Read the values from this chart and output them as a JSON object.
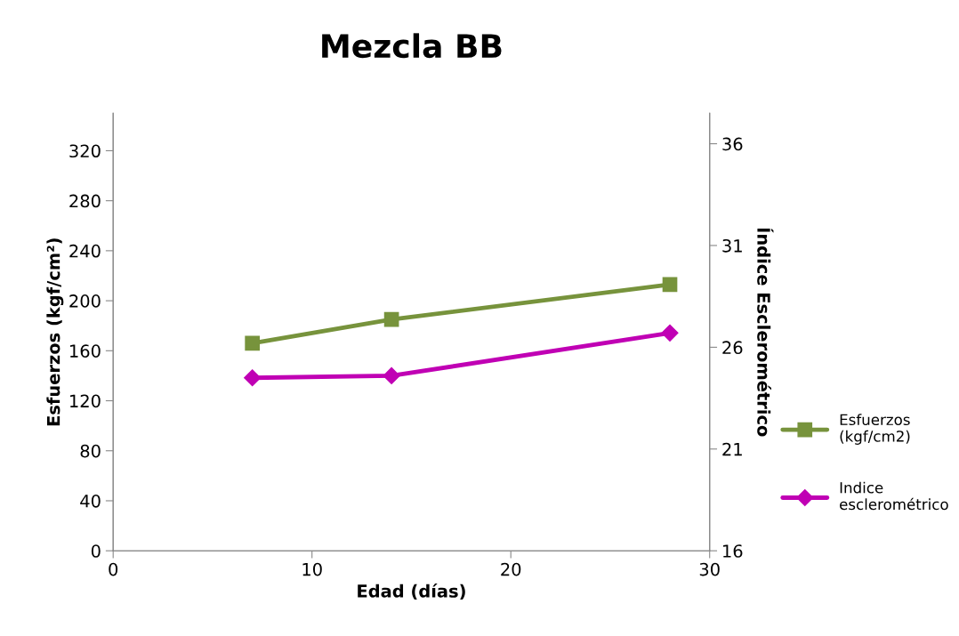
{
  "chart_data": {
    "type": "line",
    "title": "Mezcla BB",
    "xlabel": "Edad (días)",
    "ylabel": "Esfuerzos (kgf/cm²)",
    "y2label": "Índice Esclerométrico",
    "x": [
      7,
      14,
      28
    ],
    "series": [
      {
        "name": "Esfuerzos\n(kgf/cm2)",
        "color": "#77933c",
        "marker": "square",
        "values": [
          166,
          185,
          213
        ]
      },
      {
        "name": "Indice\nesclerométrico",
        "color": "#c000b4",
        "marker": "diamond",
        "axis": "y2",
        "values": [
          24.5,
          24.6,
          26.7
        ]
      }
    ],
    "xlim": [
      0,
      30
    ],
    "xticks": [
      0,
      10,
      20,
      30
    ],
    "ylim": [
      0,
      350
    ],
    "yticks": [
      0,
      40,
      80,
      120,
      160,
      200,
      240,
      280,
      320
    ],
    "y2lim": [
      16,
      37.5
    ],
    "y2ticks": [
      16,
      21,
      26,
      31,
      36
    ],
    "grid": false,
    "legend": "right",
    "line_style": "solid"
  }
}
